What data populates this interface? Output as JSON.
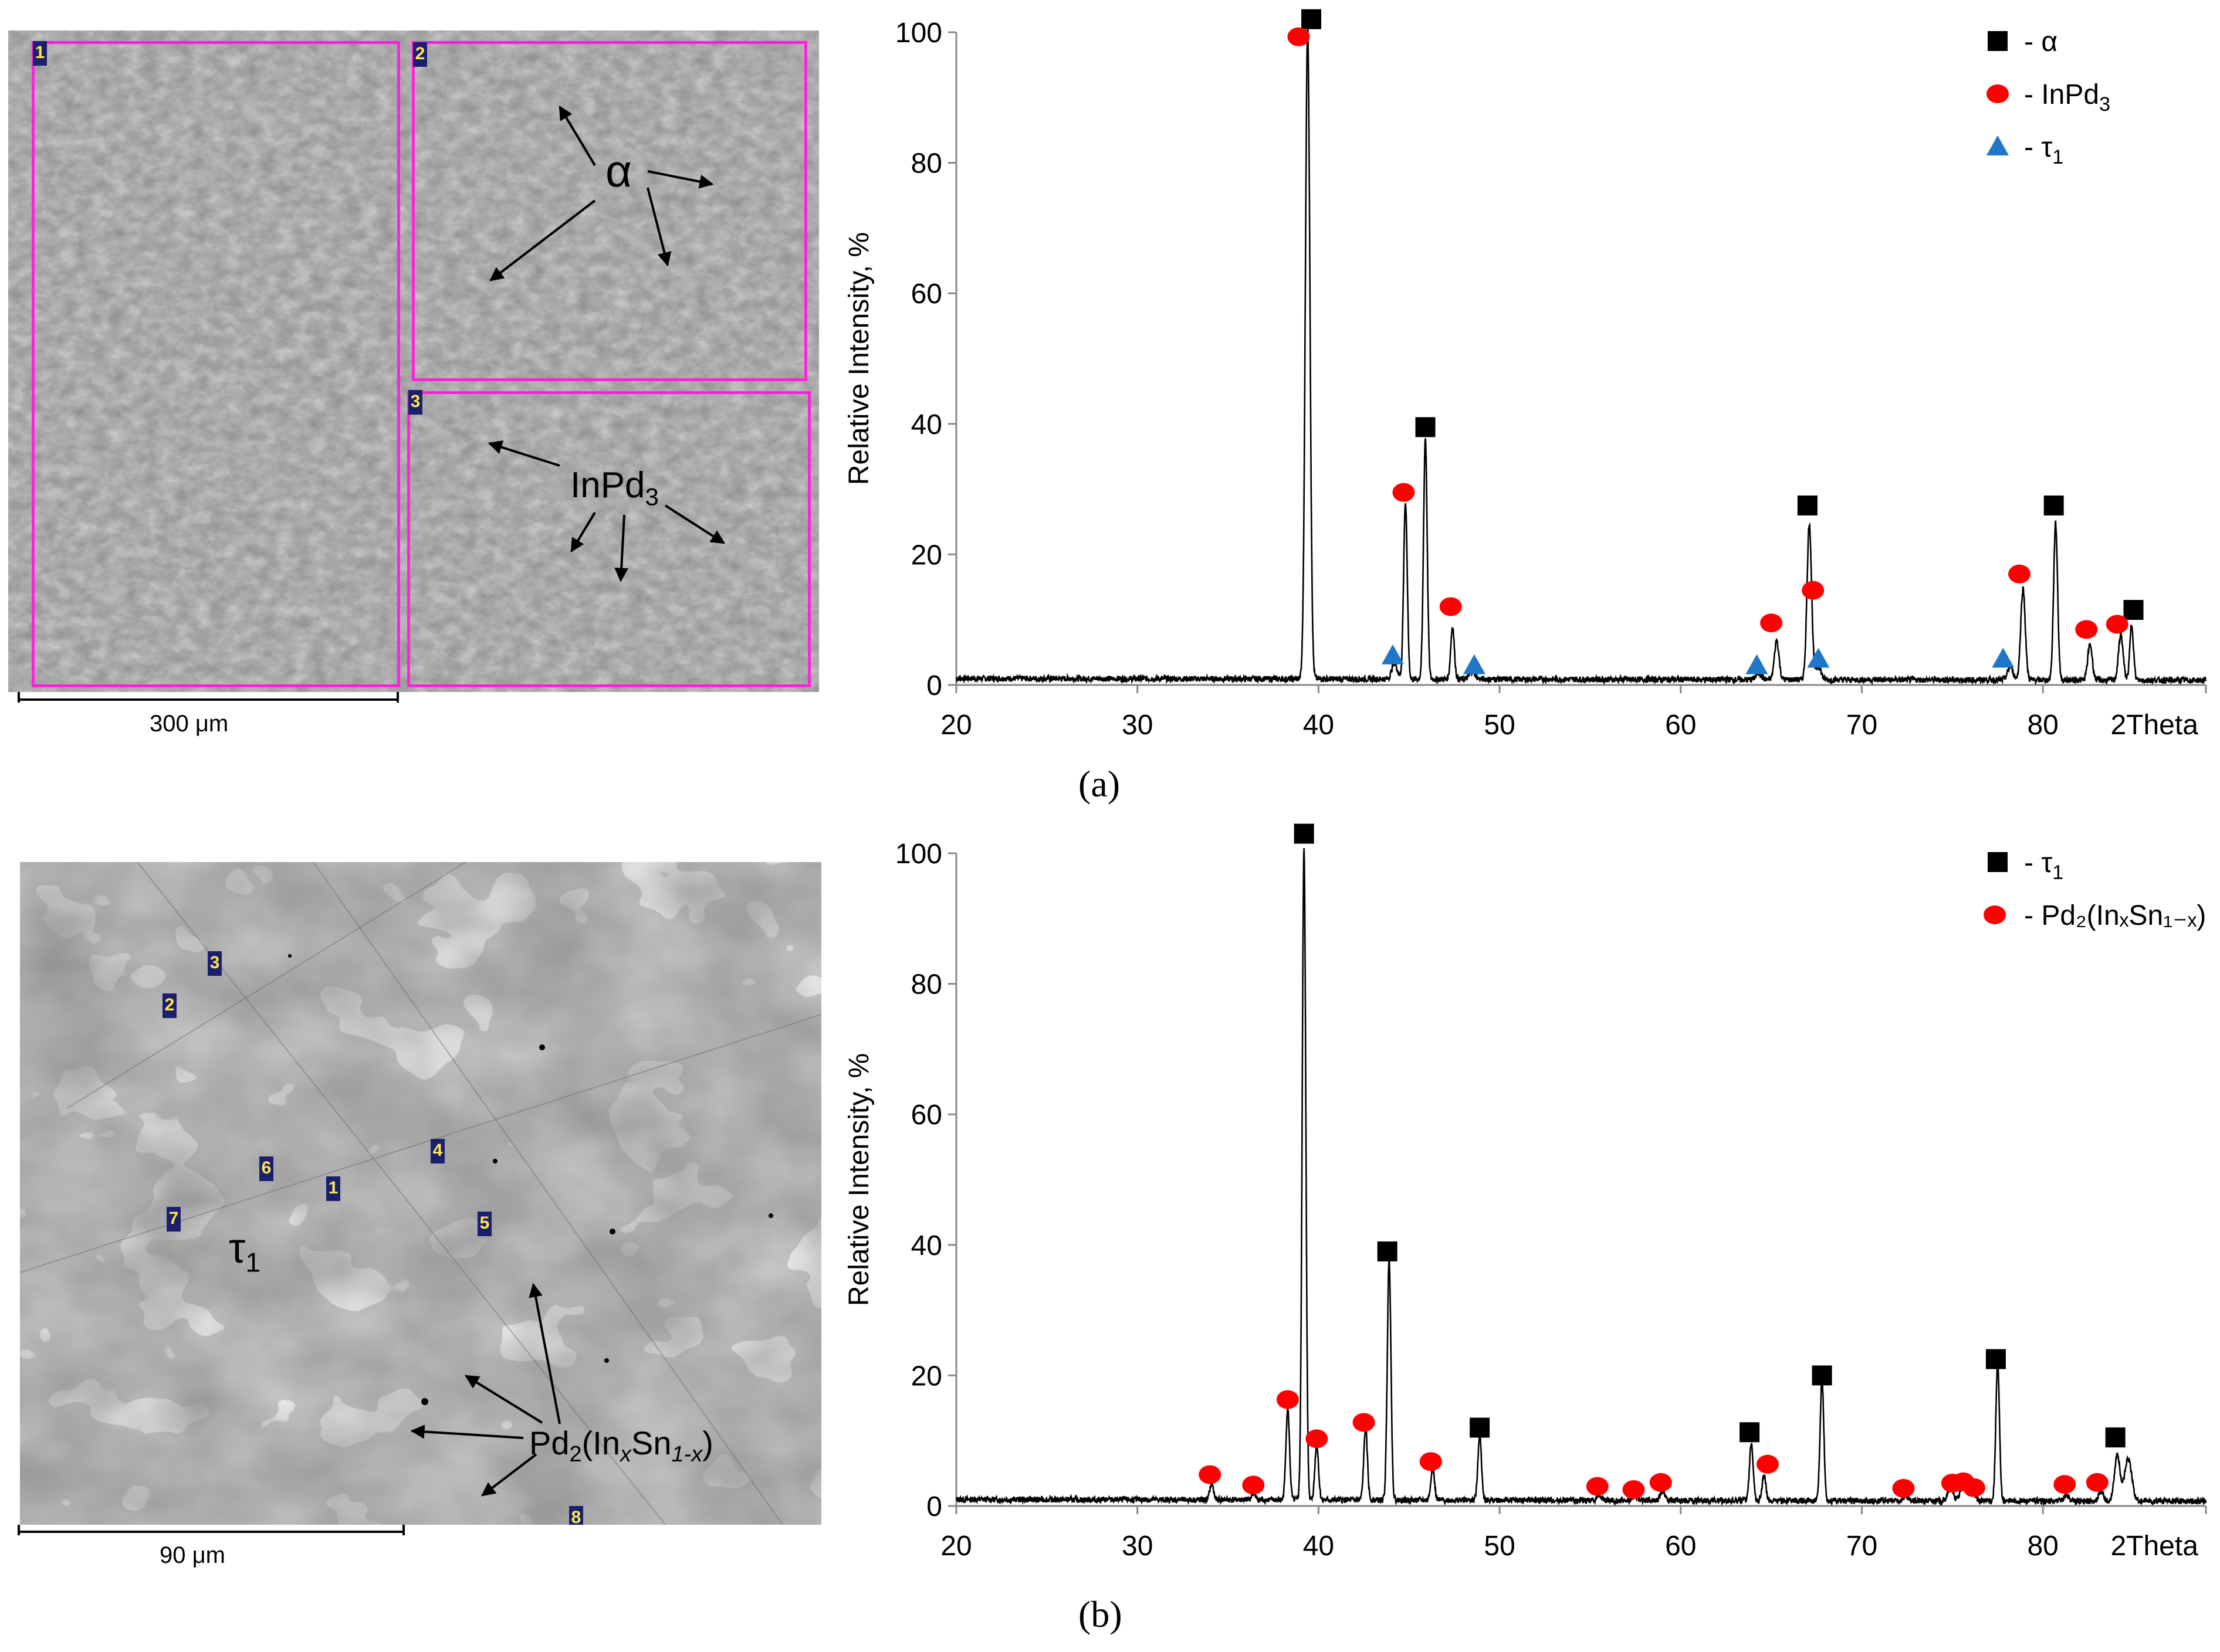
{
  "panel_a": {
    "caption": "(a)",
    "micrograph": {
      "roi_labels": [
        "1",
        "2",
        "3"
      ],
      "phase_alpha": "α",
      "phase_inpd_main": "InPd",
      "phase_inpd_sub": "3",
      "scale_label": "300 μm"
    }
  },
  "panel_b": {
    "caption": "(b)",
    "micrograph": {
      "point_labels": [
        "1",
        "2",
        "3",
        "4",
        "5",
        "6",
        "7",
        "8"
      ],
      "phase_tau_main": "τ",
      "phase_tau_sub": "1",
      "phase_pd_main": "Pd",
      "phase_pd_sub1": "2",
      "phase_pd_mid": "(In",
      "phase_pd_x": "x",
      "phase_pd_sn": "Sn",
      "phase_pd_sub2": "1-x",
      "phase_pd_close": ")",
      "scale_label": "90  μm"
    }
  },
  "chart_data": [
    {
      "type": "line",
      "panel": "a",
      "title": "",
      "xlabel": "2Theta",
      "ylabel": "Relative Intensity, %",
      "xlim": [
        20,
        89
      ],
      "ylim": [
        0,
        100
      ],
      "x_ticks": [
        20,
        30,
        40,
        50,
        60,
        70,
        80
      ],
      "y_ticks": [
        0,
        20,
        40,
        60,
        80,
        100
      ],
      "peaks": [
        {
          "x": 39.4,
          "y": 100,
          "w": 0.25
        },
        {
          "x": 44.2,
          "y": 2.5,
          "w": 0.3
        },
        {
          "x": 44.8,
          "y": 27,
          "w": 0.2
        },
        {
          "x": 45.9,
          "y": 37,
          "w": 0.2
        },
        {
          "x": 47.4,
          "y": 8,
          "w": 0.2
        },
        {
          "x": 48.5,
          "y": 1.2,
          "w": 0.3
        },
        {
          "x": 64.3,
          "y": 1,
          "w": 0.3
        },
        {
          "x": 65.3,
          "y": 6,
          "w": 0.25
        },
        {
          "x": 67.1,
          "y": 24,
          "w": 0.25
        },
        {
          "x": 67.6,
          "y": 2,
          "w": 0.3
        },
        {
          "x": 78.2,
          "y": 2,
          "w": 0.3
        },
        {
          "x": 78.9,
          "y": 14,
          "w": 0.25
        },
        {
          "x": 80.7,
          "y": 24,
          "w": 0.22
        },
        {
          "x": 82.6,
          "y": 5.5,
          "w": 0.25
        },
        {
          "x": 84.3,
          "y": 7,
          "w": 0.25
        },
        {
          "x": 84.9,
          "y": 8.5,
          "w": 0.2
        }
      ],
      "markers": [
        {
          "series": "α",
          "x": 39.6,
          "y": 102
        },
        {
          "series": "α",
          "x": 45.9,
          "y": 39.5
        },
        {
          "series": "α",
          "x": 67.0,
          "y": 27.5
        },
        {
          "series": "α",
          "x": 80.6,
          "y": 27.5
        },
        {
          "series": "α",
          "x": 85.0,
          "y": 11.5
        },
        {
          "series": "InPd3",
          "x": 38.9,
          "y": 99.3
        },
        {
          "series": "InPd3",
          "x": 44.7,
          "y": 29.5
        },
        {
          "series": "InPd3",
          "x": 47.3,
          "y": 12
        },
        {
          "series": "InPd3",
          "x": 65.0,
          "y": 9.5
        },
        {
          "series": "InPd3",
          "x": 67.3,
          "y": 14.5
        },
        {
          "series": "InPd3",
          "x": 78.7,
          "y": 17
        },
        {
          "series": "InPd3",
          "x": 82.4,
          "y": 8.5
        },
        {
          "series": "InPd3",
          "x": 84.1,
          "y": 9.3
        },
        {
          "series": "τ1",
          "x": 44.1,
          "y": 4.5
        },
        {
          "series": "τ1",
          "x": 48.6,
          "y": 3
        },
        {
          "series": "τ1",
          "x": 64.2,
          "y": 3
        },
        {
          "series": "τ1",
          "x": 67.6,
          "y": 4
        },
        {
          "series": "τ1",
          "x": 77.8,
          "y": 4
        }
      ],
      "legend": {
        "placement": "top-right",
        "entries": [
          {
            "series": "α",
            "label": "- α",
            "label_main": "- α",
            "label_sub": ""
          },
          {
            "series": "InPd3",
            "label": "- InPd₃",
            "label_main": "- InPd",
            "label_sub": "3"
          },
          {
            "series": "τ1",
            "label": "- τ₁",
            "label_main": "- τ",
            "label_sub": "1"
          }
        ]
      },
      "colors": {
        "α": "#000000",
        "InPd3": "#ff0000",
        "τ1": "#1f77c8"
      }
    },
    {
      "type": "line",
      "panel": "b",
      "title": "",
      "xlabel": "2Theta",
      "ylabel": "Relative Intensity, %",
      "xlim": [
        20,
        89
      ],
      "ylim": [
        0,
        100
      ],
      "x_ticks": [
        20,
        30,
        40,
        50,
        60,
        70,
        80
      ],
      "y_ticks": [
        0,
        20,
        40,
        60,
        80,
        100
      ],
      "peaks": [
        {
          "x": 34.1,
          "y": 2.5,
          "w": 0.2
        },
        {
          "x": 36.4,
          "y": 1,
          "w": 0.2
        },
        {
          "x": 38.3,
          "y": 14,
          "w": 0.2
        },
        {
          "x": 39.2,
          "y": 100,
          "w": 0.2
        },
        {
          "x": 39.9,
          "y": 8.5,
          "w": 0.2
        },
        {
          "x": 42.6,
          "y": 11,
          "w": 0.2
        },
        {
          "x": 43.9,
          "y": 37,
          "w": 0.2
        },
        {
          "x": 46.3,
          "y": 5,
          "w": 0.2
        },
        {
          "x": 48.9,
          "y": 10,
          "w": 0.2
        },
        {
          "x": 55.5,
          "y": 0.8,
          "w": 0.25
        },
        {
          "x": 57.5,
          "y": 0.6,
          "w": 0.25
        },
        {
          "x": 59.0,
          "y": 1.5,
          "w": 0.25
        },
        {
          "x": 63.9,
          "y": 9,
          "w": 0.2
        },
        {
          "x": 64.6,
          "y": 4,
          "w": 0.2
        },
        {
          "x": 67.8,
          "y": 18.5,
          "w": 0.2
        },
        {
          "x": 72.4,
          "y": 0.6,
          "w": 0.25
        },
        {
          "x": 74.9,
          "y": 2,
          "w": 0.3
        },
        {
          "x": 75.6,
          "y": 2.5,
          "w": 0.3
        },
        {
          "x": 76.1,
          "y": 1.8,
          "w": 0.3
        },
        {
          "x": 77.5,
          "y": 21,
          "w": 0.2
        },
        {
          "x": 81.3,
          "y": 1,
          "w": 0.25
        },
        {
          "x": 83.2,
          "y": 1.5,
          "w": 0.25
        },
        {
          "x": 84.1,
          "y": 7,
          "w": 0.3
        },
        {
          "x": 84.7,
          "y": 6.5,
          "w": 0.4
        }
      ],
      "markers": [
        {
          "series": "τ1",
          "x": 39.2,
          "y": 103
        },
        {
          "series": "τ1",
          "x": 43.8,
          "y": 39
        },
        {
          "series": "τ1",
          "x": 48.9,
          "y": 12
        },
        {
          "series": "τ1",
          "x": 63.8,
          "y": 11.3
        },
        {
          "series": "τ1",
          "x": 67.8,
          "y": 20
        },
        {
          "series": "τ1",
          "x": 77.4,
          "y": 22.5
        },
        {
          "series": "τ1",
          "x": 84.0,
          "y": 10.5
        },
        {
          "series": "Pd2",
          "x": 34.0,
          "y": 4.8
        },
        {
          "series": "Pd2",
          "x": 36.4,
          "y": 3.2
        },
        {
          "series": "Pd2",
          "x": 38.3,
          "y": 16.3
        },
        {
          "series": "Pd2",
          "x": 39.9,
          "y": 10.3
        },
        {
          "series": "Pd2",
          "x": 42.5,
          "y": 12.8
        },
        {
          "series": "Pd2",
          "x": 46.2,
          "y": 6.8
        },
        {
          "series": "Pd2",
          "x": 55.4,
          "y": 3
        },
        {
          "series": "Pd2",
          "x": 57.4,
          "y": 2.5
        },
        {
          "series": "Pd2",
          "x": 58.9,
          "y": 3.6
        },
        {
          "series": "Pd2",
          "x": 64.8,
          "y": 6.4
        },
        {
          "series": "Pd2",
          "x": 72.3,
          "y": 2.7
        },
        {
          "series": "Pd2",
          "x": 75.0,
          "y": 3.5
        },
        {
          "series": "Pd2",
          "x": 75.6,
          "y": 3.7
        },
        {
          "series": "Pd2",
          "x": 76.2,
          "y": 2.8
        },
        {
          "series": "Pd2",
          "x": 81.2,
          "y": 3.3
        },
        {
          "series": "Pd2",
          "x": 83.0,
          "y": 3.6
        }
      ],
      "legend": {
        "placement": "top-right",
        "entries": [
          {
            "series": "τ1",
            "label": "- τ₁",
            "label_main": "- τ",
            "label_sub": "1"
          },
          {
            "series": "Pd2",
            "label": "- Pd₂(InₓSn₁₋ₓ)",
            "label_main": "- Pd₂(InₓSn₁₋ₓ)",
            "label_sub": ""
          }
        ]
      },
      "colors": {
        "τ1": "#000000",
        "Pd2": "#ff0000"
      }
    }
  ]
}
